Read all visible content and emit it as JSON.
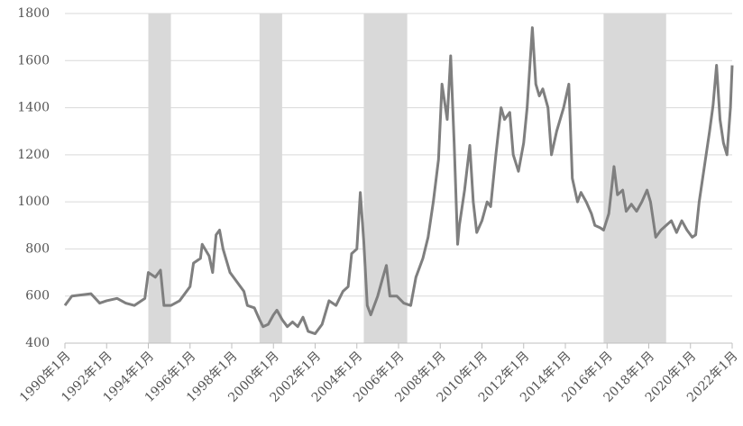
{
  "chart_data": {
    "type": "line",
    "x": [
      "1990-01",
      "1990-05",
      "1991-04",
      "1991-09",
      "1992-01",
      "1992-07",
      "1992-12",
      "1993-05",
      "1993-11",
      "1994-01",
      "1994-05",
      "1994-08",
      "1994-10",
      "1995-02",
      "1995-07",
      "1996-01",
      "1996-03",
      "1996-07",
      "1996-08",
      "1996-12",
      "1997-02",
      "1997-04",
      "1997-06",
      "1997-08",
      "1997-12",
      "1998-04",
      "1998-08",
      "1998-10",
      "1999-02",
      "1999-05",
      "1999-07",
      "1999-10",
      "2000-01",
      "2000-03",
      "2000-06",
      "2000-09",
      "2000-12",
      "2001-03",
      "2001-06",
      "2001-09",
      "2002-01",
      "2002-05",
      "2002-09",
      "2003-01",
      "2003-05",
      "2003-08",
      "2003-10",
      "2004-01",
      "2004-03",
      "2004-05",
      "2004-07",
      "2004-09",
      "2005-01",
      "2005-04",
      "2005-06",
      "2005-08",
      "2005-12",
      "2006-04",
      "2006-08",
      "2006-11",
      "2007-03",
      "2007-06",
      "2007-09",
      "2007-12",
      "2008-02",
      "2008-05",
      "2008-07",
      "2008-09",
      "2008-11",
      "2008-12",
      "2009-03",
      "2009-06",
      "2009-08",
      "2009-10",
      "2010-01",
      "2010-04",
      "2010-06",
      "2010-09",
      "2010-12",
      "2011-02",
      "2011-05",
      "2011-07",
      "2011-10",
      "2012-01",
      "2012-03",
      "2012-06",
      "2012-08",
      "2012-10",
      "2012-12",
      "2013-03",
      "2013-05",
      "2013-08",
      "2013-12",
      "2014-03",
      "2014-05",
      "2014-08",
      "2014-10",
      "2015-01",
      "2015-04",
      "2015-06",
      "2015-09",
      "2015-11",
      "2016-02",
      "2016-05",
      "2016-07",
      "2016-10",
      "2016-12",
      "2017-03",
      "2017-06",
      "2017-09",
      "2017-12",
      "2018-02",
      "2018-05",
      "2018-08",
      "2018-11",
      "2019-02",
      "2019-05",
      "2019-08",
      "2019-11",
      "2020-02",
      "2020-04",
      "2020-06",
      "2020-09",
      "2020-12",
      "2021-02",
      "2021-04",
      "2021-06",
      "2021-08",
      "2021-10",
      "2021-12",
      "2022-01"
    ],
    "series": [
      {
        "color": "#7f7f7f",
        "values": [
          560,
          600,
          610,
          570,
          580,
          590,
          570,
          560,
          590,
          700,
          680,
          710,
          560,
          560,
          580,
          640,
          740,
          760,
          820,
          770,
          700,
          860,
          880,
          800,
          700,
          660,
          620,
          560,
          550,
          500,
          470,
          480,
          520,
          540,
          500,
          470,
          490,
          470,
          510,
          450,
          440,
          480,
          580,
          560,
          620,
          640,
          780,
          800,
          1040,
          830,
          560,
          520,
          600,
          680,
          730,
          600,
          600,
          570,
          560,
          680,
          760,
          850,
          1000,
          1180,
          1500,
          1350,
          1620,
          1250,
          820,
          900,
          1050,
          1240,
          1000,
          870,
          920,
          1000,
          980,
          1200,
          1400,
          1350,
          1380,
          1200,
          1130,
          1250,
          1400,
          1740,
          1500,
          1450,
          1480,
          1400,
          1200,
          1300,
          1400,
          1500,
          1100,
          1000,
          1040,
          1000,
          950,
          900,
          890,
          880,
          950,
          1150,
          1030,
          1050,
          960,
          990,
          960,
          1000,
          1050,
          1000,
          850,
          880,
          900,
          920,
          870,
          920,
          880,
          850,
          860,
          1000,
          1150,
          1300,
          1410,
          1580,
          1350,
          1250,
          1200,
          1400,
          1580
        ]
      }
    ],
    "xlim": [
      "1990-01",
      "2022-01"
    ],
    "xticks": [
      {
        "value": "1990-01",
        "label": "1990年1月"
      },
      {
        "value": "1992-01",
        "label": "1992年1月"
      },
      {
        "value": "1994-01",
        "label": "1994年1月"
      },
      {
        "value": "1996-01",
        "label": "1996年1月"
      },
      {
        "value": "1998-01",
        "label": "1998年1月"
      },
      {
        "value": "2000-01",
        "label": "2000年1月"
      },
      {
        "value": "2002-01",
        "label": "2002年1月"
      },
      {
        "value": "2004-01",
        "label": "2004年1月"
      },
      {
        "value": "2006-01",
        "label": "2006年1月"
      },
      {
        "value": "2008-01",
        "label": "2008年1月"
      },
      {
        "value": "2010-01",
        "label": "2010年1月"
      },
      {
        "value": "2012-01",
        "label": "2012年1月"
      },
      {
        "value": "2014-01",
        "label": "2014年1月"
      },
      {
        "value": "2016-01",
        "label": "2016年1月"
      },
      {
        "value": "2018-01",
        "label": "2018年1月"
      },
      {
        "value": "2020-01",
        "label": "2020年1月"
      },
      {
        "value": "2022-01",
        "label": "2022年1月"
      }
    ],
    "ylim": [
      400,
      1800
    ],
    "yticks": [
      400,
      600,
      800,
      1000,
      1200,
      1400,
      1600,
      1800
    ],
    "grid": true,
    "shaded": [
      {
        "start": "1994-01",
        "end": "1995-02",
        "color": "#d9d9d9"
      },
      {
        "start": "1999-05",
        "end": "2000-06",
        "color": "#d9d9d9"
      },
      {
        "start": "2004-05",
        "end": "2006-06",
        "color": "#d9d9d9"
      },
      {
        "start": "2015-11",
        "end": "2018-11",
        "color": "#d9d9d9"
      }
    ]
  }
}
